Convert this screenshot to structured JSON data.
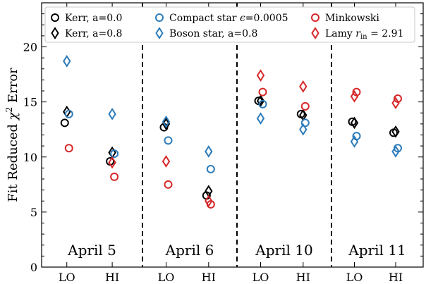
{
  "chart_data": {
    "type": "scatter",
    "ylabel_base": "Fit Reduced ",
    "ylabel_symbol": "χ",
    "ylabel_sup": "2",
    "ylabel_tail": " Error",
    "ylim": [
      0,
      24
    ],
    "yticks": [
      0,
      5,
      10,
      15,
      20
    ],
    "grid": false,
    "legend_placement": "top",
    "groups": [
      "April 5",
      "April 6",
      "April 10",
      "April 11"
    ],
    "x_categories": [
      "LO",
      "HI"
    ],
    "series": [
      {
        "name": "Kerr, a=0.0",
        "marker": "circle",
        "color": "#000000",
        "values": [
          [
            13.1,
            9.6
          ],
          [
            12.7,
            6.5
          ],
          [
            15.1,
            13.9
          ],
          [
            13.2,
            12.2
          ]
        ]
      },
      {
        "name": "Kerr, a=0.8",
        "marker": "diamond",
        "color": "#000000",
        "values": [
          [
            14.1,
            10.4
          ],
          [
            13.0,
            6.9
          ],
          [
            15.1,
            13.8
          ],
          [
            13.1,
            12.3
          ]
        ]
      },
      {
        "name_prefix": "Compact star ",
        "name_symbol": "ϵ",
        "name_suffix": "=0.0005",
        "marker": "circle",
        "color": "#2b7bba",
        "values": [
          [
            13.9,
            10.3
          ],
          [
            11.5,
            8.9
          ],
          [
            14.8,
            13.1
          ],
          [
            11.9,
            10.8
          ]
        ]
      },
      {
        "name": "Boson star, a=0.8",
        "marker": "diamond",
        "color": "#2b7bba",
        "values": [
          [
            18.7,
            13.9
          ],
          [
            13.2,
            10.5
          ],
          [
            13.5,
            12.5
          ],
          [
            11.4,
            10.5
          ]
        ]
      },
      {
        "name": "Minkowski",
        "marker": "circle",
        "color": "#d62728",
        "values": [
          [
            10.8,
            8.2
          ],
          [
            7.5,
            5.7
          ],
          [
            15.9,
            14.6
          ],
          [
            15.9,
            15.3
          ]
        ]
      },
      {
        "name_prefix": "Lamy ",
        "name_symbol": "r",
        "name_sub": "in",
        "name_suffix": " = 2.91",
        "marker": "diamond",
        "color": "#d62728",
        "values": [
          [
            null,
            9.5
          ],
          [
            9.6,
            6.0
          ],
          [
            17.4,
            16.4
          ],
          [
            15.5,
            14.9
          ]
        ]
      }
    ]
  }
}
